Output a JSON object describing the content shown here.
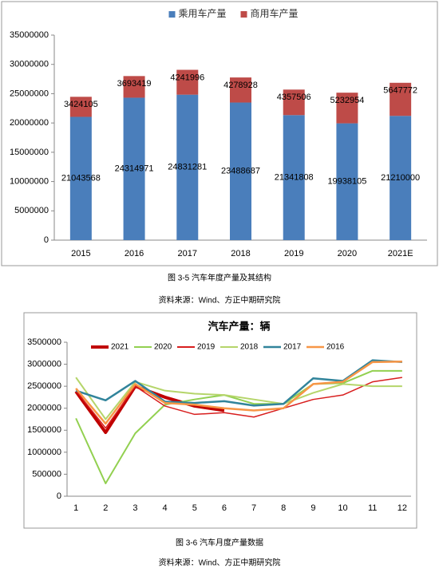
{
  "chart_data": [
    {
      "type": "stacked_bar",
      "categories": [
        "2015",
        "2016",
        "2017",
        "2018",
        "2019",
        "2020",
        "2021E"
      ],
      "series": [
        {
          "name": "乘用车产量",
          "color": "#4a7ebb",
          "values": [
            21043568,
            24314971,
            24831281,
            23488687,
            21341808,
            19938105,
            21210000
          ]
        },
        {
          "name": "商用车产量",
          "color": "#be4b48",
          "values": [
            3424105,
            3693419,
            4241996,
            4278928,
            4357506,
            5232954,
            5647772
          ]
        }
      ],
      "ylim": [
        0,
        35000000
      ],
      "yticks": [
        0,
        5000000,
        10000000,
        15000000,
        20000000,
        25000000,
        30000000,
        35000000
      ],
      "grid": false,
      "legend": "top"
    },
    {
      "type": "line",
      "title": "汽车产量：辆",
      "categories": [
        "1",
        "2",
        "3",
        "4",
        "5",
        "6",
        "7",
        "8",
        "9",
        "10",
        "11",
        "12"
      ],
      "series": [
        {
          "name": "2021",
          "color": "#c00000",
          "width": 4,
          "values": [
            2380000,
            1450000,
            2500000,
            2250000,
            2050000,
            1950000,
            null,
            null,
            null,
            null,
            null,
            null
          ]
        },
        {
          "name": "2020",
          "color": "#92d050",
          "width": 2,
          "values": [
            1770000,
            290000,
            1430000,
            2080000,
            2200000,
            2300000,
            2100000,
            2100000,
            2550000,
            2570000,
            2850000,
            2850000
          ]
        },
        {
          "name": "2019",
          "color": "#d81e1e",
          "width": 1.5,
          "values": [
            2400000,
            1550000,
            2500000,
            2050000,
            1860000,
            1900000,
            1800000,
            2000000,
            2200000,
            2300000,
            2600000,
            2700000
          ]
        },
        {
          "name": "2018",
          "color": "#b5d56a",
          "width": 2,
          "values": [
            2700000,
            1750000,
            2600000,
            2400000,
            2330000,
            2300000,
            2200000,
            2100000,
            2350000,
            2550000,
            2500000,
            2500000
          ]
        },
        {
          "name": "2017",
          "color": "#31849b",
          "width": 2.5,
          "values": [
            2400000,
            2180000,
            2620000,
            2150000,
            2120000,
            2160000,
            2060000,
            2100000,
            2680000,
            2620000,
            3090000,
            3050000
          ]
        },
        {
          "name": "2016",
          "color": "#f79646",
          "width": 2.5,
          "values": [
            2450000,
            1650000,
            2550000,
            2120000,
            2080000,
            2000000,
            1950000,
            2000000,
            2550000,
            2600000,
            3050000,
            3060000
          ]
        }
      ],
      "ylim": [
        0,
        3500000
      ],
      "yticks": [
        0,
        500000,
        1000000,
        1500000,
        2000000,
        2500000,
        3000000,
        3500000
      ],
      "grid": false,
      "legend": "top"
    }
  ],
  "figure_captions": [
    "图 3-5 汽车年度产量及其结构",
    "图 3-6 汽车月度产量数据"
  ],
  "sources": [
    "资料来源：Wind、方正中期研究院",
    "资料来源：Wind、方正中期研究院"
  ]
}
